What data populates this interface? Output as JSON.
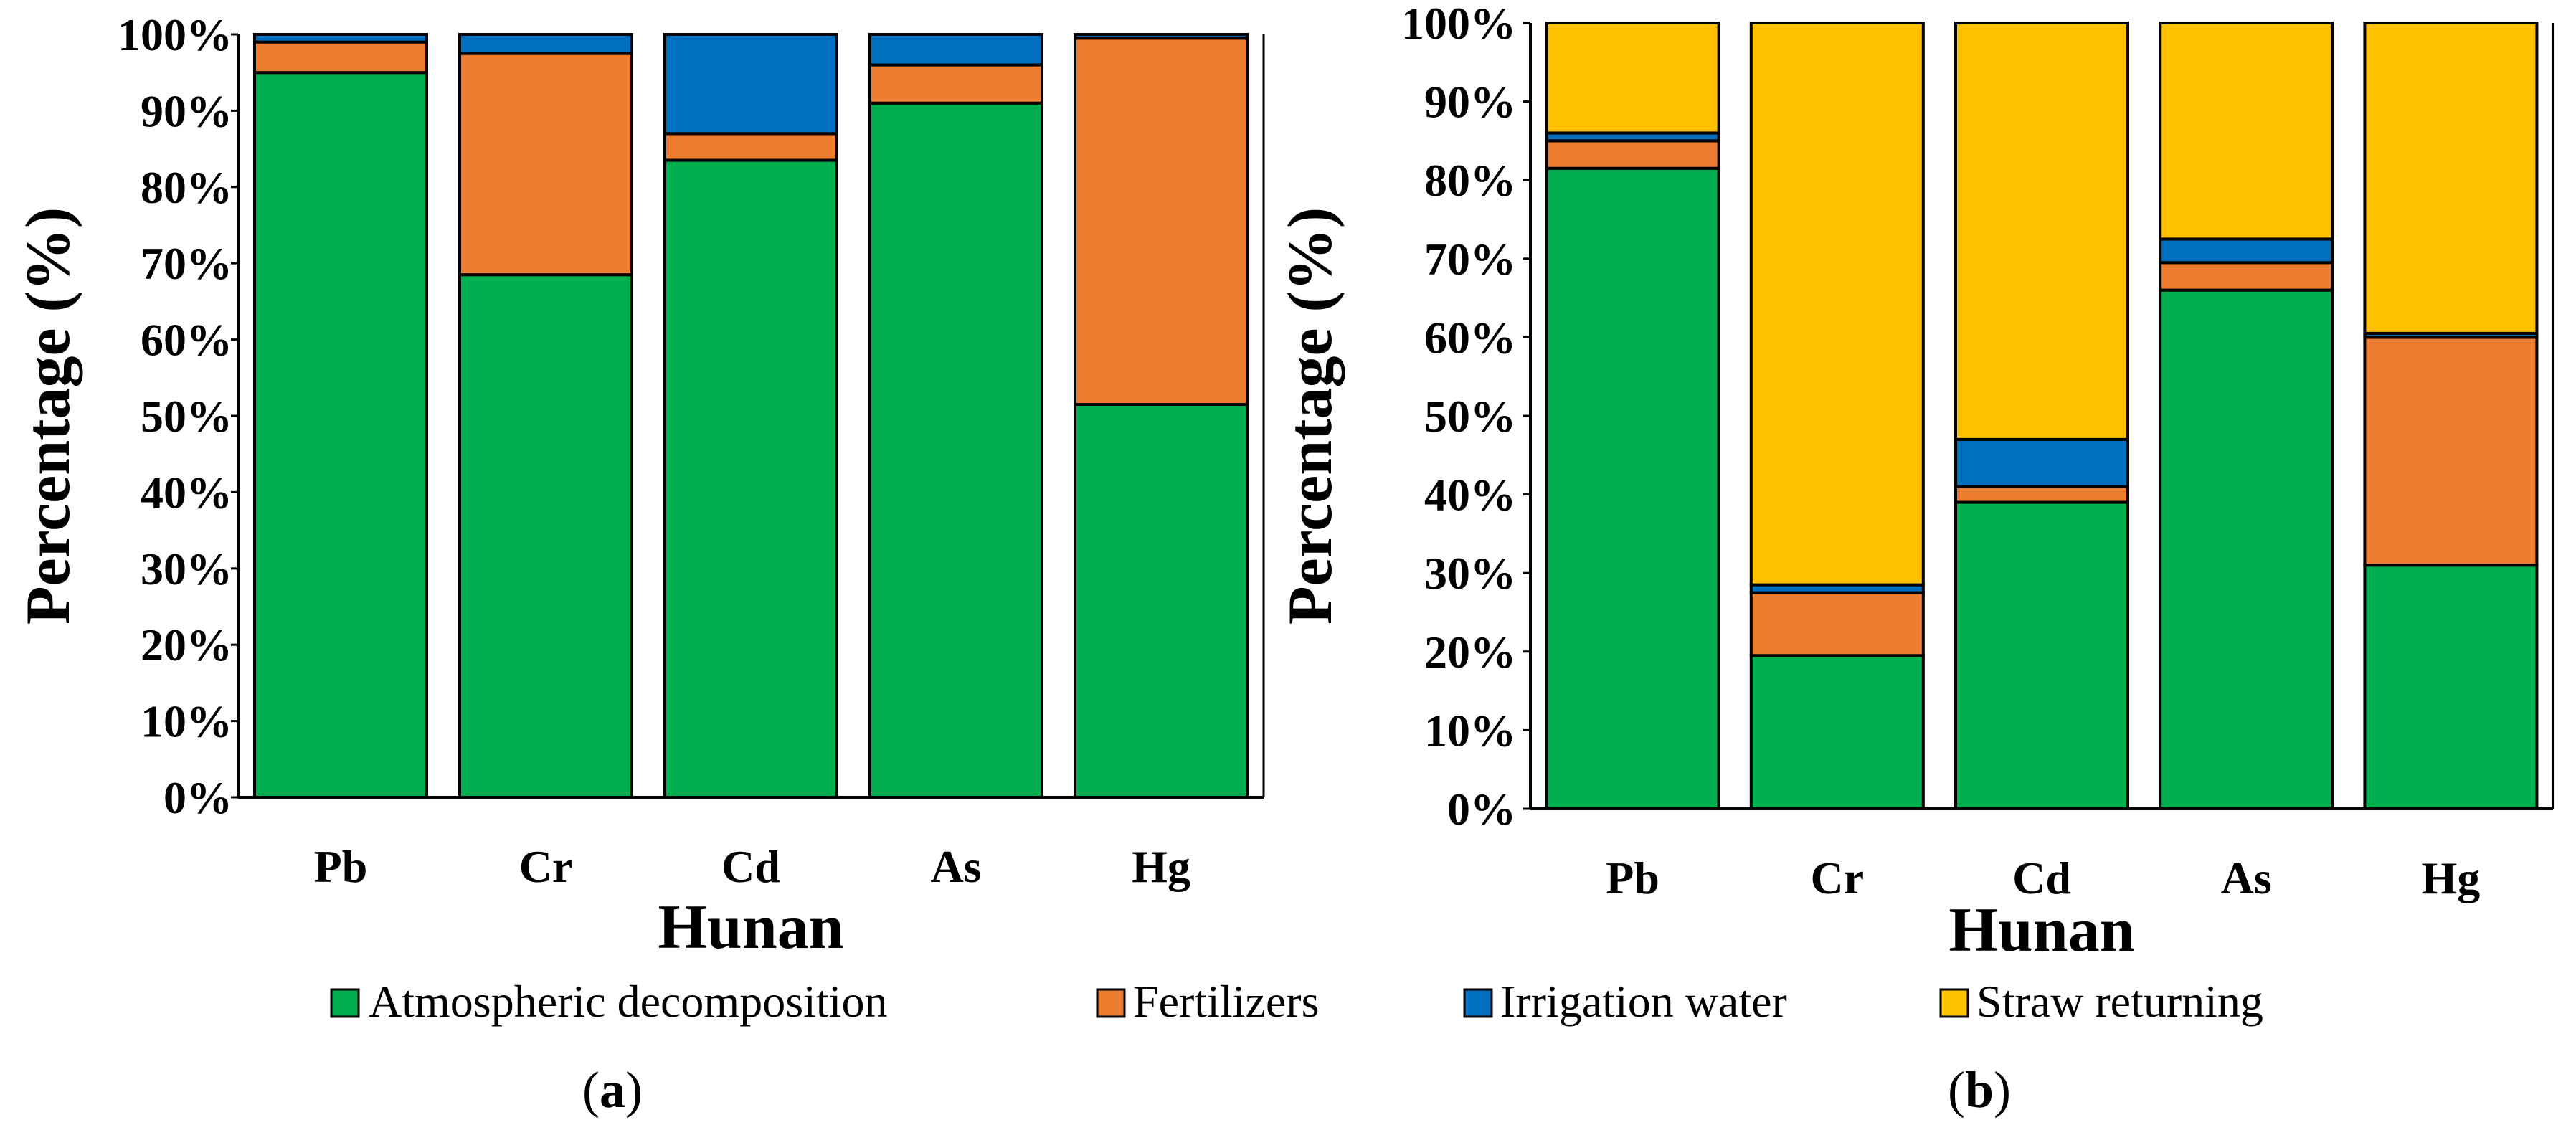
{
  "chart_data": [
    {
      "type": "bar",
      "stacked": true,
      "panel": "a",
      "categories": [
        "Pb",
        "Cr",
        "Cd",
        "As",
        "Hg"
      ],
      "series": [
        {
          "name": "Atmospheric decomposition",
          "values": [
            95,
            68.5,
            83.5,
            91,
            51.5
          ]
        },
        {
          "name": "Fertilizers",
          "values": [
            4,
            29,
            3.5,
            5,
            48
          ]
        },
        {
          "name": "Irrigation water",
          "values": [
            1,
            2.5,
            13,
            4,
            0.5
          ]
        },
        {
          "name": "Straw returning",
          "values": [
            0,
            0,
            0,
            0,
            0
          ]
        }
      ],
      "xlabel": "Hunan",
      "ylabel": "Percentage (%)",
      "ylim": [
        0,
        100
      ],
      "yticks": [
        "0%",
        "10%",
        "20%",
        "30%",
        "40%",
        "50%",
        "60%",
        "70%",
        "80%",
        "90%",
        "100%"
      ],
      "grid": false
    },
    {
      "type": "bar",
      "stacked": true,
      "panel": "b",
      "categories": [
        "Pb",
        "Cr",
        "Cd",
        "As",
        "Hg"
      ],
      "series": [
        {
          "name": "Atmospheric decomposition",
          "values": [
            81.5,
            19.5,
            39,
            66,
            31
          ]
        },
        {
          "name": "Fertilizers",
          "values": [
            3.5,
            8,
            2,
            3.5,
            29
          ]
        },
        {
          "name": "Irrigation water",
          "values": [
            1,
            1,
            6,
            3,
            0.5
          ]
        },
        {
          "name": "Straw returning",
          "values": [
            14,
            71.5,
            53,
            27.5,
            39.5
          ]
        }
      ],
      "xlabel": "Hunan",
      "ylabel": "Percentage (%)",
      "ylim": [
        0,
        100
      ],
      "yticks": [
        "0%",
        "10%",
        "20%",
        "30%",
        "40%",
        "50%",
        "60%",
        "70%",
        "80%",
        "90%",
        "100%"
      ],
      "grid": false
    }
  ],
  "legend": {
    "items": [
      {
        "label": "Atmospheric decomposition",
        "color": "#00b050"
      },
      {
        "label": "Fertilizers",
        "color": "#ed7d31"
      },
      {
        "label": "Irrigation water",
        "color": "#0070c0"
      },
      {
        "label": "Straw returning",
        "color": "#ffc000"
      }
    ]
  },
  "colors": {
    "Atmospheric decomposition": "#00b050",
    "Fertilizers": "#ed7d31",
    "Irrigation water": "#0070c0",
    "Straw returning": "#ffc000"
  },
  "panels": {
    "a": {
      "open": "(",
      "letter": "a",
      "close": ")"
    },
    "b": {
      "open": "(",
      "letter": "b",
      "close": ")"
    }
  }
}
